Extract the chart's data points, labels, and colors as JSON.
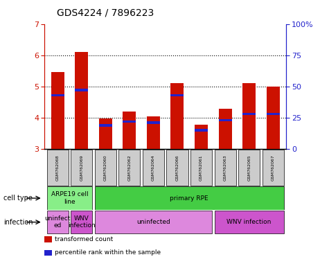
{
  "title": "GDS4224 / 7896223",
  "samples": [
    "GSM762068",
    "GSM762069",
    "GSM762060",
    "GSM762062",
    "GSM762064",
    "GSM762066",
    "GSM762061",
    "GSM762063",
    "GSM762065",
    "GSM762067"
  ],
  "transformed_counts": [
    5.45,
    6.1,
    3.98,
    4.2,
    4.05,
    5.1,
    3.78,
    4.28,
    5.1,
    5.0
  ],
  "percentile_ranks": [
    43,
    47,
    19,
    22,
    21,
    43,
    15,
    23,
    28,
    28
  ],
  "ylim": [
    3,
    7
  ],
  "yticks_left": [
    3,
    4,
    5,
    6,
    7
  ],
  "yticks_right": [
    0,
    25,
    50,
    75,
    100
  ],
  "bar_color": "#cc1100",
  "pct_color": "#2222cc",
  "grid_color": "#000000",
  "left_axis_color": "#cc1100",
  "right_axis_color": "#2222cc",
  "sample_box_color": "#cccccc",
  "cell_type_spans": [
    {
      "start": 0,
      "end": 2,
      "label": "ARPE19 cell\nline",
      "color": "#88ee88"
    },
    {
      "start": 2,
      "end": 10,
      "label": "primary RPE",
      "color": "#44cc44"
    }
  ],
  "infection_spans": [
    {
      "start": 0,
      "end": 1,
      "label": "uninfect\ned",
      "color": "#dd88dd"
    },
    {
      "start": 1,
      "end": 2,
      "label": "WNV\ninfection",
      "color": "#cc55cc"
    },
    {
      "start": 2,
      "end": 7,
      "label": "uninfected",
      "color": "#dd88dd"
    },
    {
      "start": 7,
      "end": 10,
      "label": "WNV infection",
      "color": "#cc55cc"
    }
  ],
  "legend_items": [
    {
      "label": "transformed count",
      "color": "#cc1100"
    },
    {
      "label": "percentile rank within the sample",
      "color": "#2222cc"
    }
  ]
}
